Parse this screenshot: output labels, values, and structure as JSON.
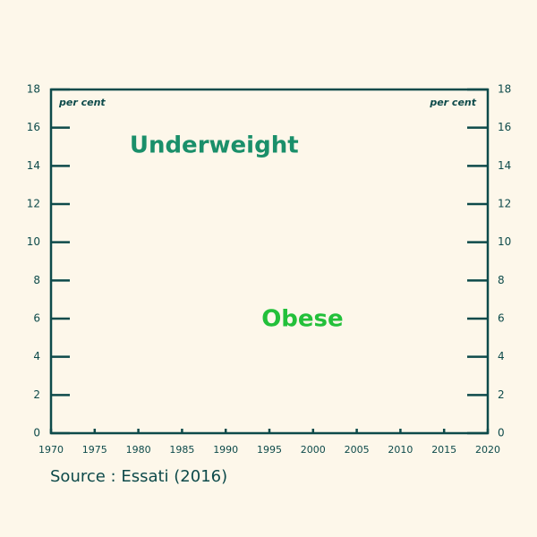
{
  "chart_data": {
    "type": "line",
    "xlim": [
      1970,
      2020
    ],
    "xticks": [
      1970,
      1975,
      1980,
      1985,
      1990,
      1995,
      2000,
      2005,
      2010,
      2015,
      2020
    ],
    "ylim": [
      0,
      18
    ],
    "yticks": [
      0,
      2,
      4,
      6,
      8,
      10,
      12,
      14,
      16,
      18
    ],
    "y2lim": [
      0,
      18
    ],
    "y2ticks": [
      0,
      2,
      4,
      6,
      8,
      10,
      12,
      14,
      16,
      18
    ],
    "ylabel": "per cent",
    "y2label": "per cent",
    "series": [],
    "annotations": [
      {
        "text": "Underweight",
        "x": 1979,
        "y": 15.05,
        "color": "#1a8f6a"
      },
      {
        "text": "Obese",
        "x": 1994.1,
        "y": 5.95,
        "color": "#22c03a"
      }
    ],
    "source": "Source : Essati (2016)"
  }
}
